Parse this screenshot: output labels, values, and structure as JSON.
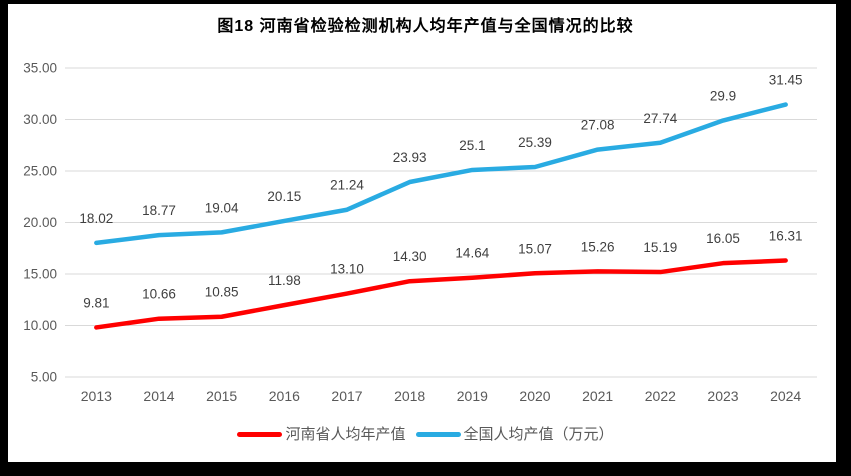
{
  "title": "图18  河南省检验检测机构人均年产值与全国情况的比较",
  "chart_data": {
    "type": "line",
    "title": "图18  河南省检验检测机构人均年产值与全国情况的比较",
    "categories": [
      "2013",
      "2014",
      "2015",
      "2016",
      "2017",
      "2018",
      "2019",
      "2020",
      "2021",
      "2022",
      "2023",
      "2024"
    ],
    "series": [
      {
        "id": "henan",
        "name": "河南省人均年产值",
        "color": "#ff0000",
        "values": [
          9.81,
          10.66,
          10.85,
          11.98,
          13.1,
          14.3,
          14.64,
          15.07,
          15.26,
          15.19,
          16.05,
          16.31
        ],
        "labels": [
          "9.81",
          "10.66",
          "10.85",
          "11.98",
          "13.10",
          "14.30",
          "14.64",
          "15.07",
          "15.26",
          "15.19",
          "16.05",
          "16.31"
        ]
      },
      {
        "id": "national",
        "name": "全国人均产值（万元）",
        "color": "#29abe2",
        "values": [
          18.02,
          18.77,
          19.04,
          20.15,
          21.24,
          23.93,
          25.1,
          25.39,
          27.08,
          27.74,
          29.9,
          31.45
        ],
        "labels": [
          "18.02",
          "18.77",
          "19.04",
          "20.15",
          "21.24",
          "23.93",
          "25.1",
          "25.39",
          "27.08",
          "27.74",
          "29.9",
          "31.45"
        ]
      }
    ],
    "y_axis": {
      "min": 5,
      "max": 35,
      "step": 5,
      "tick_labels": [
        "35.00",
        "30.00",
        "25.00",
        "20.00",
        "15.00",
        "10.00",
        "5.00"
      ]
    },
    "ylim": [
      5,
      35
    ],
    "grid": true,
    "legend_position": "bottom"
  },
  "colors": {
    "grid": "#d9d9d9",
    "axis_text": "#595959",
    "data_label": "#3f3f3f",
    "title": "#000000",
    "frame": "#000000",
    "background": "#ffffff"
  }
}
